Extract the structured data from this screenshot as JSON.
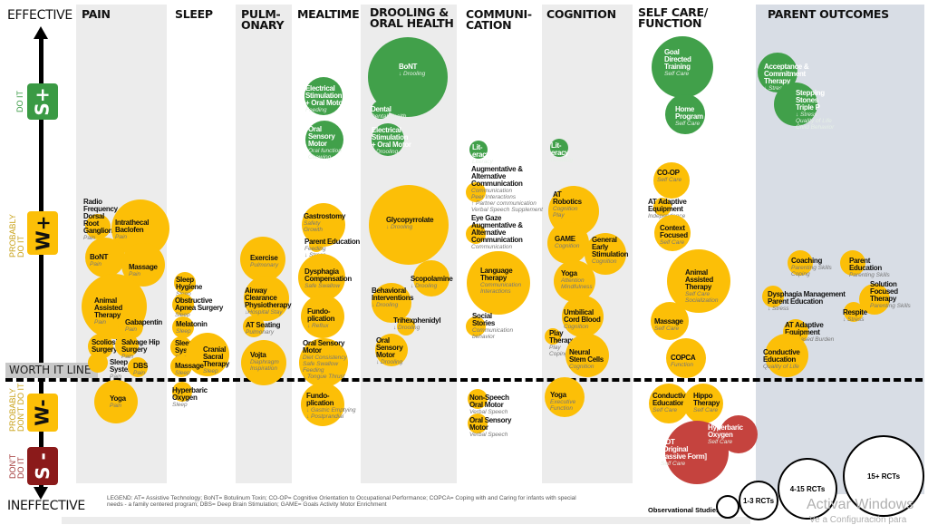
{
  "axis": {
    "top": "EFFECTIVE",
    "bottom": "INEFFECTIVE",
    "levels": [
      {
        "code": "S+",
        "side": "DO IT",
        "color": "#3a9a44"
      },
      {
        "code": "W+",
        "side": "PROBABLY\nDO IT",
        "color": "#fcbf07"
      },
      {
        "code": "W-",
        "side": "PROBABLY\nDON'T DO IT",
        "color": "#fcbf07"
      },
      {
        "code": "S -",
        "side": "DON'T\nDO IT",
        "color": "#8b1a1a"
      }
    ],
    "worth_line": "WORTH IT LINE"
  },
  "columns": [
    {
      "title": "PAIN"
    },
    {
      "title": "SLEEP"
    },
    {
      "title": "PULM-\nONARY"
    },
    {
      "title": "MEALTIME"
    },
    {
      "title": "DROOLING &\nORAL HEALTH"
    },
    {
      "title": "COMMUNI-\nCATION"
    },
    {
      "title": "COGNITION"
    },
    {
      "title": "SELF CARE/\nFUNCTION"
    },
    {
      "title": "PARENT OUTCOMES"
    }
  ],
  "colors": {
    "strong_positive": "#41a04a",
    "weak": "#fcbf07",
    "strong_negative": "#c5433e"
  },
  "interventions": [
    {
      "name": "Radio\nFrequency\nDorsal\nRoot\nGanglion",
      "outcome": "Pain",
      "rating": "W+"
    },
    {
      "name": "Intrathecal\nBaclofen",
      "outcome": "Pain",
      "rating": "W+"
    },
    {
      "name": "BoNT",
      "outcome": "Pain",
      "rating": "W+"
    },
    {
      "name": "Massage",
      "outcome": "Pain",
      "rating": "W+"
    },
    {
      "name": "Animal\nAssisted\nTherapy",
      "outcome": "Pain",
      "rating": "W+"
    },
    {
      "name": "Gabapentin",
      "outcome": "Pain",
      "rating": "W+"
    },
    {
      "name": "Scoliosis\nSurgery",
      "outcome": "Pain",
      "rating": "W+"
    },
    {
      "name": "Salvage Hip\nSurgery",
      "outcome": "Pain",
      "rating": "W+"
    },
    {
      "name": "Sleep\nSystem",
      "outcome": "Pain",
      "rating": "W+"
    },
    {
      "name": "DBS",
      "outcome": "Pain",
      "rating": "W+"
    },
    {
      "name": "Yoga",
      "outcome": "Pain",
      "rating": "W-"
    },
    {
      "name": "Sleep\nHygiene",
      "outcome": "Sleep",
      "rating": "W+"
    },
    {
      "name": "Obstructive\nApnea Surgery",
      "outcome": "Sleep",
      "rating": "W+"
    },
    {
      "name": "Melatonin",
      "outcome": "Sleep",
      "rating": "W+"
    },
    {
      "name": "Sleep\nSystem",
      "outcome": "Sleep",
      "rating": "W+"
    },
    {
      "name": "Cranial\nSacral\nTherapy",
      "outcome": "Sleep",
      "rating": "W+"
    },
    {
      "name": "Massage",
      "outcome": "Sleep",
      "rating": "W+"
    },
    {
      "name": "Hyperbaric\nOxygen",
      "outcome": "Sleep",
      "rating": "W-"
    },
    {
      "name": "Exercise",
      "outcome": "Pulmonary",
      "rating": "W+"
    },
    {
      "name": "Airway\nClearance\nPhysiotherapy",
      "outcome": "↓Hospital Stay",
      "rating": "W+"
    },
    {
      "name": "AT Seating",
      "outcome": "Pulmonary",
      "rating": "W+"
    },
    {
      "name": "Vojta",
      "outcome": "Diaphragm\nInspiration",
      "rating": "W+"
    },
    {
      "name": "Electrical\nStimulation\n+ Oral Motor",
      "outcome": "Feeding",
      "rating": "S+"
    },
    {
      "name": "Oral\nSensory\nMotor",
      "outcome": "Oral function\nChewing",
      "rating": "S+"
    },
    {
      "name": "Gastrostomy",
      "outcome": "Safety\nGrowth",
      "rating": "W+"
    },
    {
      "name": "Parent Education",
      "outcome": "Feeding\n↓ Stress",
      "rating": "W+"
    },
    {
      "name": "Dysphagia\nCompensation",
      "outcome": "Safe Swallow",
      "rating": "W+"
    },
    {
      "name": "Fundo-\nplication",
      "outcome": "↓ Reflux",
      "rating": "W+"
    },
    {
      "name": "Oral Sensory\nMotor",
      "outcome": "Diet Consistency\nSafe Swallow\nFeeding\n↓ Tongue Thrust",
      "rating": "W+"
    },
    {
      "name": "Fundo-\nplication",
      "outcome": "↓ Gastric Emptying\n↓ Postprandial",
      "rating": "W-"
    },
    {
      "name": "BoNT",
      "outcome": "↓ Drooling",
      "rating": "S+"
    },
    {
      "name": "Dental",
      "outcome": "Dental Health",
      "rating": "S+"
    },
    {
      "name": "Electrical\nStimulation\n+ Oral Motor",
      "outcome": "↓ Drooling",
      "rating": "S+"
    },
    {
      "name": "Glycopyrrolate",
      "outcome": "↓ Drooling",
      "rating": "W+"
    },
    {
      "name": "Scopolamine",
      "outcome": "↓ Drooling",
      "rating": "W+"
    },
    {
      "name": "Behavioral\nInterventions",
      "outcome": "↓ Drooling",
      "rating": "W+"
    },
    {
      "name": "Trihexphenidyl",
      "outcome": "↓ Drooling",
      "rating": "W+"
    },
    {
      "name": "Oral\nSensory\nMotor",
      "outcome": "↓ Drooling",
      "rating": "W+"
    },
    {
      "name": "Lit-\neracy",
      "outcome": "Literacy",
      "rating": "S+"
    },
    {
      "name": "Augmentative &\nAlternative\nCommunication",
      "outcome": "Communication\nPeer Interactions\n↑ Partner communication\nVerbal Speech Supplement",
      "rating": "W+"
    },
    {
      "name": "Eye Gaze\nAugmentative &\nAlternative\nCommunication",
      "outcome": "Communication",
      "rating": "W+"
    },
    {
      "name": "Language\nTherapy",
      "outcome": "Communication\nInteractions",
      "rating": "W+"
    },
    {
      "name": "Social\nStories",
      "outcome": "Communication\nbehavior",
      "rating": "W+"
    },
    {
      "name": "Non-Speech\nOral Motor",
      "outcome": "Verbal Speech",
      "rating": "W-"
    },
    {
      "name": "Oral Sensory\nMotor",
      "outcome": "Verbal Speech",
      "rating": "W-"
    },
    {
      "name": "Lit-\neracy",
      "outcome": "Reading",
      "rating": "S+"
    },
    {
      "name": "AT\nRobotics",
      "outcome": "Cognition\nPlay",
      "rating": "W+"
    },
    {
      "name": "GAME",
      "outcome": "Cognition",
      "rating": "W+"
    },
    {
      "name": "General\nEarly\nStimulation",
      "outcome": "Cognition",
      "rating": "W+"
    },
    {
      "name": "Yoga",
      "outcome": "Attention\nMindfulness",
      "rating": "W+"
    },
    {
      "name": "Umbilical\nCord Blood",
      "outcome": "Cognition",
      "rating": "W+"
    },
    {
      "name": "Play\nTherapy",
      "outcome": "Play\nCoping",
      "rating": "W+"
    },
    {
      "name": "Neural\nStem Cells",
      "outcome": "Cognition",
      "rating": "W+"
    },
    {
      "name": "Yoga",
      "outcome": "Executive\nFunction",
      "rating": "W-"
    },
    {
      "name": "Goal\nDirected\nTraining",
      "outcome": "Self Care",
      "rating": "S+"
    },
    {
      "name": "Home\nProgram",
      "outcome": "Self Care",
      "rating": "S+"
    },
    {
      "name": "CO-OP",
      "outcome": "Self Care",
      "rating": "W+"
    },
    {
      "name": "AT Adaptive\nEquipment",
      "outcome": "Independence",
      "rating": "W+"
    },
    {
      "name": "Context\nFocused",
      "outcome": "Self Care",
      "rating": "W+"
    },
    {
      "name": "Animal\nAssisted\nTherapy",
      "outcome": "Self Care\nSocialization",
      "rating": "W+"
    },
    {
      "name": "Massage",
      "outcome": "Self Care",
      "rating": "W+"
    },
    {
      "name": "COPCA",
      "outcome": "Function",
      "rating": "W+"
    },
    {
      "name": "Conductive\nEducation",
      "outcome": "Self Care",
      "rating": "W-"
    },
    {
      "name": "Hippo\nTherapy",
      "outcome": "Self Care",
      "rating": "W-"
    },
    {
      "name": "NDT\n[Original\nPassive Form]",
      "outcome": "Self Care",
      "rating": "S-"
    },
    {
      "name": "Hyperbaric\nOxygen",
      "outcome": "Self Care",
      "rating": "S-"
    },
    {
      "name": "Acceptance &\nCommitment\nTherapy",
      "outcome": "↓ Stress",
      "rating": "S+"
    },
    {
      "name": "Stepping\nStones\nTriple P",
      "outcome": "↓ Stress\nQuality of Life\nChild Behavior",
      "rating": "S+"
    },
    {
      "name": "Coaching",
      "outcome": "Parenting Skills\nCoping",
      "rating": "W+"
    },
    {
      "name": "Parent\nEducation",
      "outcome": "Parenting Skills",
      "rating": "W+"
    },
    {
      "name": "Dysphagia Management\nParent Education",
      "outcome": "↓ Stress",
      "rating": "W+"
    },
    {
      "name": "Solution\nFocused\nTherapy",
      "outcome": "Parenting Skills",
      "rating": "W+"
    },
    {
      "name": "Respite",
      "outcome": "↓ Stress",
      "rating": "W+"
    },
    {
      "name": "AT Adaptive\nEquipment",
      "outcome": "Decreased Burden",
      "rating": "W+"
    },
    {
      "name": "Conductive\nEducation",
      "outcome": "Quality of Life",
      "rating": "W+"
    }
  ],
  "legend": {
    "text": "LEGEND: AT= Assistive Technology; BoNT= Botulinum Toxin; CO-OP= Cognitive Orientation to Occupational Performance; COPCA= Coping with and Caring for infants with special needs - a family centered program; DBS= Deep Brain Stimulation; GAME= Goals Activity Motor Enrichment",
    "sizes": [
      "Observational Studies ONLY",
      "1-3 RCTs",
      "4-15 RCTs",
      "15+ RCTs"
    ]
  },
  "watermark": {
    "line1": "Activar Windows",
    "line2": "Ve a Configuración para"
  }
}
